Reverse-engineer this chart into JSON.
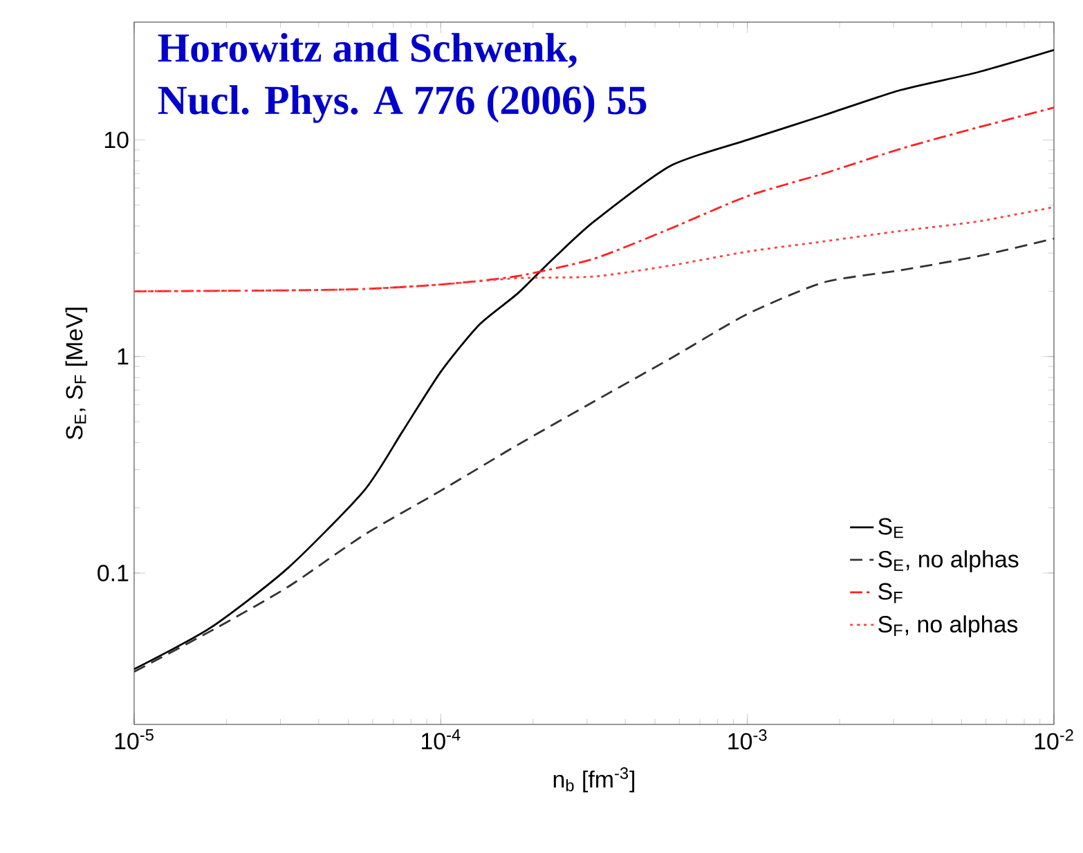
{
  "chart_data": {
    "type": "line",
    "log": "xy",
    "xlabel": "n$_{b}$ [fm$^{-3}$]",
    "ylabel": "S$_{E}$, S$_{F}$ [MeV]",
    "annotations": [
      "Horowitz and Schwenk,",
      "Nucl. Phys. A 776 (2006) 55"
    ],
    "xlim": [
      1e-05,
      0.01
    ],
    "ylim": [
      0.02,
      35
    ],
    "xticks": [
      {
        "value": 1e-05,
        "label": "10$^{-5}$"
      },
      {
        "value": 0.0001,
        "label": "10$^{-4}$"
      },
      {
        "value": 0.001,
        "label": "10$^{-3}$"
      },
      {
        "value": 0.01,
        "label": "10$^{-2}$"
      }
    ],
    "yticks": [
      0.1,
      1,
      10
    ],
    "legend": "bottom right",
    "series": [
      {
        "name": "S$_{E}$",
        "color": "#000000",
        "line_style": "solid",
        "x": [
          1e-05,
          1.778e-05,
          3.162e-05,
          5.623e-05,
          7.499e-05,
          0.0001,
          0.0001334,
          0.0001778,
          0.0002371,
          0.0003162,
          0.0005623,
          0.001,
          0.001778,
          0.003162,
          0.005623,
          0.01
        ],
        "values": [
          0.036,
          0.056,
          0.105,
          0.24,
          0.45,
          0.85,
          1.4,
          1.95,
          2.9,
          4.2,
          7.6,
          10,
          13,
          17,
          20.5,
          26
        ]
      },
      {
        "name": "S$_{E}$, no alphas",
        "color": "#333333",
        "line_style": "dashed",
        "x": [
          1e-05,
          1.778e-05,
          3.162e-05,
          5.623e-05,
          0.0001,
          0.0001778,
          0.0003162,
          0.0005623,
          0.001,
          0.001778,
          0.003162,
          0.005623,
          0.01
        ],
        "values": [
          0.035,
          0.054,
          0.086,
          0.15,
          0.24,
          0.39,
          0.62,
          0.98,
          1.57,
          2.2,
          2.5,
          2.9,
          3.5
        ]
      },
      {
        "name": "S$_{F}$",
        "color": "#ff2020",
        "line_style": "dashdot",
        "x": [
          1e-05,
          3.162e-05,
          5.623e-05,
          0.0001,
          0.0001778,
          0.0003162,
          0.0005623,
          0.001,
          0.001778,
          0.003162,
          0.005623,
          0.01
        ],
        "values": [
          2.0,
          2.02,
          2.05,
          2.15,
          2.35,
          2.83,
          3.9,
          5.5,
          7.0,
          9.1,
          11.4,
          14.1
        ]
      },
      {
        "name": "S$_{F}$, no alphas",
        "color": "#ff4040",
        "line_style": "dotted",
        "x": [
          1e-05,
          3.162e-05,
          5.623e-05,
          0.0001,
          0.0001778,
          0.0003162,
          0.0005623,
          0.001,
          0.001778,
          0.003162,
          0.005623,
          0.01
        ],
        "values": [
          2.0,
          2.02,
          2.05,
          2.15,
          2.3,
          2.34,
          2.63,
          3.05,
          3.4,
          3.8,
          4.2,
          4.9
        ]
      }
    ]
  }
}
